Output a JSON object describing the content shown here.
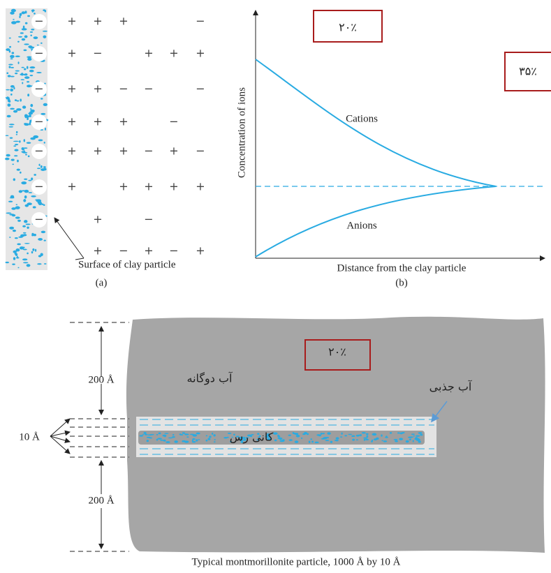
{
  "panel_a": {
    "surface_signs": [
      "−",
      "−",
      "−",
      "−",
      "−",
      "−",
      "−"
    ],
    "charges": [
      [
        "+",
        "+",
        "+",
        null,
        null,
        "−"
      ],
      [
        "+",
        "−",
        null,
        "+",
        "+",
        "+"
      ],
      [
        "+",
        "+",
        "−",
        "−",
        null,
        "−"
      ],
      [
        "+",
        "+",
        "+",
        null,
        "−",
        null
      ],
      [
        "+",
        "+",
        "+",
        "−",
        "+",
        "−"
      ],
      [
        "+",
        null,
        "+",
        "+",
        "+",
        "+"
      ],
      [
        null,
        "+",
        null,
        "−",
        null,
        null
      ],
      [
        null,
        "+",
        "−",
        "+",
        "−",
        "+"
      ]
    ],
    "surface_label": "Surface of clay particle",
    "caption": "(a)"
  },
  "panel_b": {
    "y_label": "Concentration of ions",
    "x_label": "Distance from the clay particle",
    "cations": "Cations",
    "anions": "Anions",
    "caption": "(b)",
    "box_1": "۲۰٪",
    "box_2": "۳۵٪"
  },
  "particle": {
    "top_thickness": "200 Å",
    "bottom_thickness": "200 Å",
    "layer_thickness": "10 Å",
    "double_layer_water": "آب دوگانه",
    "adsorbed_water": "آب جذبی",
    "clay_mineral": "کانی رس",
    "box": "۲۰٪",
    "caption": "Typical montmorillonite particle, 1000 Å by 10 Å"
  }
}
